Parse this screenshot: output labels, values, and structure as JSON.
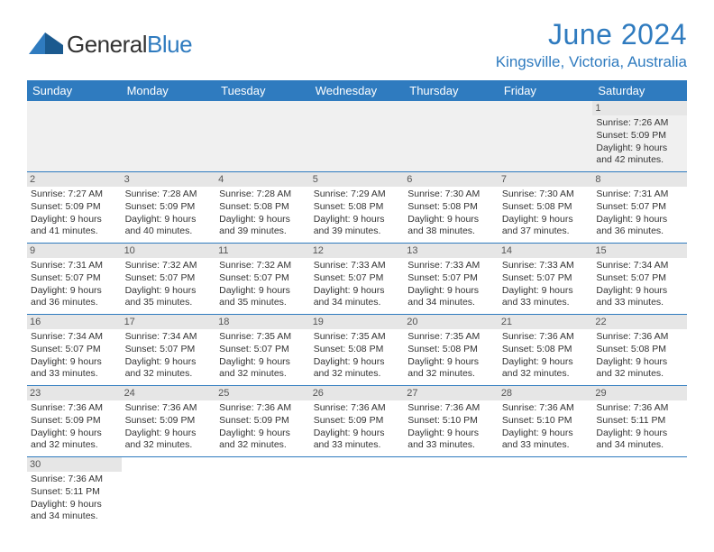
{
  "logo": {
    "part1": "General",
    "part2": "Blue"
  },
  "title": "June 2024",
  "location": "Kingsville, Victoria, Australia",
  "headers": [
    "Sunday",
    "Monday",
    "Tuesday",
    "Wednesday",
    "Thursday",
    "Friday",
    "Saturday"
  ],
  "colors": {
    "accent": "#2f7bbf",
    "header_bg": "#2f7bbf",
    "row_alt": "#e6e6e6"
  },
  "weeks": [
    [
      null,
      null,
      null,
      null,
      null,
      null,
      {
        "d": "1",
        "sr": "7:26 AM",
        "ss": "5:09 PM",
        "dl": "9 hours and 42 minutes."
      }
    ],
    [
      {
        "d": "2",
        "sr": "7:27 AM",
        "ss": "5:09 PM",
        "dl": "9 hours and 41 minutes."
      },
      {
        "d": "3",
        "sr": "7:28 AM",
        "ss": "5:09 PM",
        "dl": "9 hours and 40 minutes."
      },
      {
        "d": "4",
        "sr": "7:28 AM",
        "ss": "5:08 PM",
        "dl": "9 hours and 39 minutes."
      },
      {
        "d": "5",
        "sr": "7:29 AM",
        "ss": "5:08 PM",
        "dl": "9 hours and 39 minutes."
      },
      {
        "d": "6",
        "sr": "7:30 AM",
        "ss": "5:08 PM",
        "dl": "9 hours and 38 minutes."
      },
      {
        "d": "7",
        "sr": "7:30 AM",
        "ss": "5:08 PM",
        "dl": "9 hours and 37 minutes."
      },
      {
        "d": "8",
        "sr": "7:31 AM",
        "ss": "5:07 PM",
        "dl": "9 hours and 36 minutes."
      }
    ],
    [
      {
        "d": "9",
        "sr": "7:31 AM",
        "ss": "5:07 PM",
        "dl": "9 hours and 36 minutes."
      },
      {
        "d": "10",
        "sr": "7:32 AM",
        "ss": "5:07 PM",
        "dl": "9 hours and 35 minutes."
      },
      {
        "d": "11",
        "sr": "7:32 AM",
        "ss": "5:07 PM",
        "dl": "9 hours and 35 minutes."
      },
      {
        "d": "12",
        "sr": "7:33 AM",
        "ss": "5:07 PM",
        "dl": "9 hours and 34 minutes."
      },
      {
        "d": "13",
        "sr": "7:33 AM",
        "ss": "5:07 PM",
        "dl": "9 hours and 34 minutes."
      },
      {
        "d": "14",
        "sr": "7:33 AM",
        "ss": "5:07 PM",
        "dl": "9 hours and 33 minutes."
      },
      {
        "d": "15",
        "sr": "7:34 AM",
        "ss": "5:07 PM",
        "dl": "9 hours and 33 minutes."
      }
    ],
    [
      {
        "d": "16",
        "sr": "7:34 AM",
        "ss": "5:07 PM",
        "dl": "9 hours and 33 minutes."
      },
      {
        "d": "17",
        "sr": "7:34 AM",
        "ss": "5:07 PM",
        "dl": "9 hours and 32 minutes."
      },
      {
        "d": "18",
        "sr": "7:35 AM",
        "ss": "5:07 PM",
        "dl": "9 hours and 32 minutes."
      },
      {
        "d": "19",
        "sr": "7:35 AM",
        "ss": "5:08 PM",
        "dl": "9 hours and 32 minutes."
      },
      {
        "d": "20",
        "sr": "7:35 AM",
        "ss": "5:08 PM",
        "dl": "9 hours and 32 minutes."
      },
      {
        "d": "21",
        "sr": "7:36 AM",
        "ss": "5:08 PM",
        "dl": "9 hours and 32 minutes."
      },
      {
        "d": "22",
        "sr": "7:36 AM",
        "ss": "5:08 PM",
        "dl": "9 hours and 32 minutes."
      }
    ],
    [
      {
        "d": "23",
        "sr": "7:36 AM",
        "ss": "5:09 PM",
        "dl": "9 hours and 32 minutes."
      },
      {
        "d": "24",
        "sr": "7:36 AM",
        "ss": "5:09 PM",
        "dl": "9 hours and 32 minutes."
      },
      {
        "d": "25",
        "sr": "7:36 AM",
        "ss": "5:09 PM",
        "dl": "9 hours and 32 minutes."
      },
      {
        "d": "26",
        "sr": "7:36 AM",
        "ss": "5:09 PM",
        "dl": "9 hours and 33 minutes."
      },
      {
        "d": "27",
        "sr": "7:36 AM",
        "ss": "5:10 PM",
        "dl": "9 hours and 33 minutes."
      },
      {
        "d": "28",
        "sr": "7:36 AM",
        "ss": "5:10 PM",
        "dl": "9 hours and 33 minutes."
      },
      {
        "d": "29",
        "sr": "7:36 AM",
        "ss": "5:11 PM",
        "dl": "9 hours and 34 minutes."
      }
    ],
    [
      {
        "d": "30",
        "sr": "7:36 AM",
        "ss": "5:11 PM",
        "dl": "9 hours and 34 minutes."
      },
      null,
      null,
      null,
      null,
      null,
      null
    ]
  ],
  "labels": {
    "sunrise": "Sunrise: ",
    "sunset": "Sunset: ",
    "daylight": "Daylight: "
  }
}
